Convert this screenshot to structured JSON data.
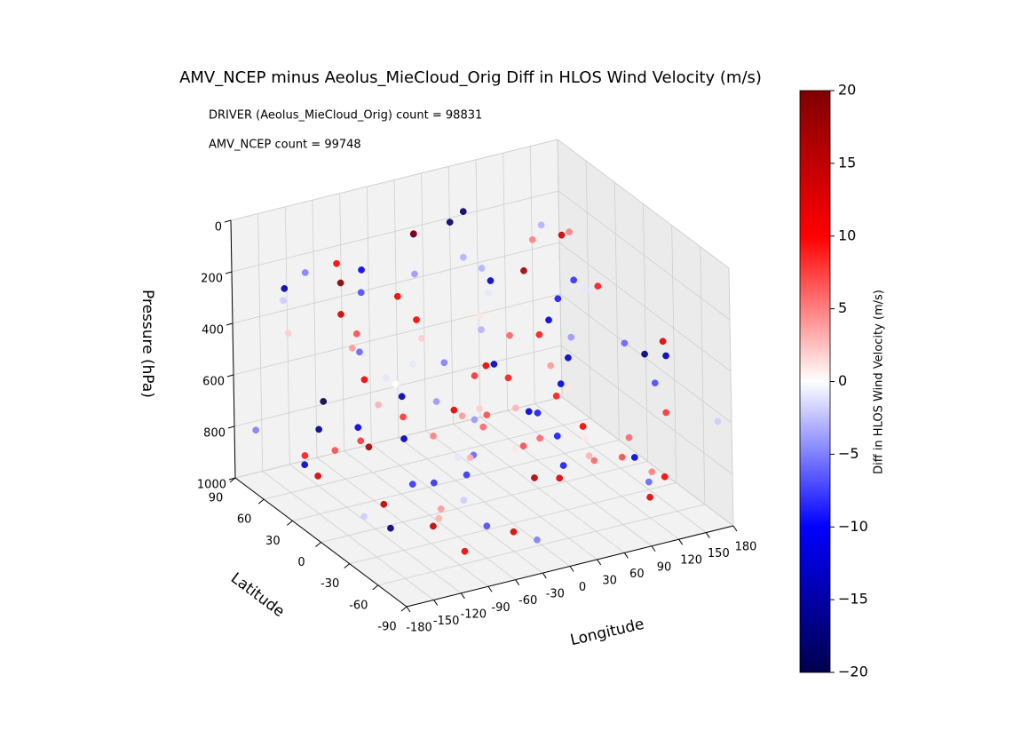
{
  "chart_data": {
    "type": "scatter3d",
    "title": "AMV_NCEP minus Aeolus_MieCloud_Orig Diff in HLOS Wind Velocity (m/s)",
    "annotations": [
      "DRIVER (Aeolus_MieCloud_Orig) count = 98831",
      "AMV_NCEP count = 99748"
    ],
    "xlabel": "Longitude",
    "ylabel": "Latitude",
    "zlabel": "Pressure (hPa)",
    "xlim": [
      -180,
      180
    ],
    "ylim": [
      -90,
      90
    ],
    "zlim": [
      0,
      1000
    ],
    "z_inverted": true,
    "xticks": [
      -180,
      -150,
      -120,
      -90,
      -60,
      -30,
      0,
      30,
      60,
      90,
      120,
      150,
      180
    ],
    "yticks": [
      -90,
      -60,
      -30,
      0,
      30,
      60,
      90
    ],
    "zticks": [
      0,
      200,
      400,
      600,
      800,
      1000
    ],
    "grid": true,
    "colorbar": {
      "label": "Diff in HLOS Wind Velocity (m/s)",
      "colormap": "seismic",
      "lim": [
        -20,
        20
      ],
      "ticks": [
        {
          "value": -20,
          "label": "−20"
        },
        {
          "value": -15,
          "label": "−15"
        },
        {
          "value": -10,
          "label": "−10"
        },
        {
          "value": -5,
          "label": "−5"
        },
        0,
        5,
        10,
        15,
        20
      ]
    },
    "series": [
      {
        "x": [
          -170,
          -150,
          -135,
          -120,
          -100,
          -85,
          -70,
          -55,
          -40,
          -25,
          -10,
          5,
          20,
          35,
          50,
          65,
          80,
          95,
          110,
          125,
          140,
          155,
          170,
          -165,
          -140,
          -115,
          -95,
          -75,
          -50,
          -30,
          -5,
          15,
          40,
          60,
          85,
          105,
          130,
          150,
          175,
          -160,
          -128,
          -105,
          -80,
          -60,
          -35,
          -15,
          10,
          30,
          55,
          75,
          100,
          120,
          145,
          165,
          -175,
          -145,
          -110,
          -90,
          -65,
          -45,
          -20,
          0,
          25,
          45,
          70,
          90,
          115,
          135,
          160,
          -155,
          -125,
          -98,
          -72,
          -48,
          -22,
          2,
          28,
          52,
          78,
          102,
          128,
          152,
          172,
          -168,
          -138,
          -112,
          -88,
          -62,
          -38,
          -12,
          12,
          38,
          62,
          88,
          112,
          138,
          162,
          -158,
          -132,
          -102,
          -78,
          -52,
          -28,
          -2,
          22,
          48,
          72,
          98,
          122,
          148,
          168,
          -172,
          -142,
          -118,
          -92,
          -68,
          -42,
          -18,
          8,
          32
        ],
        "y": [
          -80,
          45,
          -20,
          70,
          10,
          -55,
          85,
          -35,
          25,
          60,
          -70,
          5,
          50,
          -45,
          80,
          -10,
          35,
          -60,
          15,
          75,
          -25,
          55,
          -85,
          30,
          -50,
          65,
          0,
          -75,
          40,
          20,
          -40,
          85,
          -15,
          50,
          -65,
          10,
          70,
          -30,
          45,
          -55,
          25,
          -80,
          60,
          -5,
          35,
          -70,
          80,
          -20,
          55,
          -45,
          15,
          -60,
          75,
          -35,
          5,
          65,
          -85,
          40,
          -10,
          30,
          -50,
          70,
          20,
          -40,
          85,
          -25,
          50,
          -65,
          0,
          60,
          -75,
          35,
          -15,
          80,
          -55,
          10,
          45,
          -30,
          65,
          -80,
          25,
          -45,
          55,
          -5,
          75,
          -60,
          40,
          -20,
          85,
          -70,
          15,
          -35,
          60,
          -10,
          30,
          -50,
          70,
          -25,
          5,
          50,
          -65,
          80,
          -40,
          20,
          -85,
          45,
          -15,
          65,
          -55,
          35,
          -30,
          75,
          -5,
          55,
          -75,
          10,
          -45,
          85,
          -20,
          40
        ],
        "z": [
          300,
          850,
          450,
          200,
          950,
          600,
          250,
          750,
          400,
          900,
          550,
          350,
          800,
          650,
          180,
          500,
          950,
          300,
          700,
          420,
          880,
          240,
          600,
          760,
          330,
          980,
          460,
          820,
          270,
          640,
          520,
          210,
          900,
          380,
          720,
          560,
          290,
          970,
          440,
          810,
          230,
          680,
          500,
          860,
          360,
          940,
          190,
          620,
          480,
          780,
          340,
          920,
          260,
          700,
          580,
          400,
          860,
          220,
          660,
          510,
          960,
          310,
          740,
          470,
          170,
          830,
          590,
          370,
          890,
          250,
          710,
          430,
          990,
          280,
          620,
          540,
          200,
          870,
          390,
          750,
          320,
          910,
          480,
          640,
          260,
          800,
          560,
          350,
          990,
          450,
          690,
          230,
          930,
          410,
          770,
          520,
          300,
          850,
          610,
          200,
          570,
          940,
          330,
          720,
          490,
          260,
          880,
          620,
          380,
          980,
          440,
          780,
          210,
          660,
          540,
          900,
          310,
          740,
          470,
          820
        ],
        "values": [
          8,
          -12,
          3,
          -5,
          15,
          -1,
          10,
          -8,
          2,
          -14,
          6,
          -3,
          12,
          -9,
          -18,
          4,
          7,
          -6,
          1,
          18,
          -11,
          5,
          -2,
          9,
          -15,
          13,
          0,
          -7,
          11,
          -4,
          3,
          -10,
          16,
          -1,
          7,
          -13,
          5,
          -6,
          9,
          -17,
          14,
          -2,
          4,
          -8,
          10,
          -5,
          19,
          -12,
          1,
          6,
          -9,
          12,
          -3,
          8,
          -16,
          2,
          11,
          -7,
          5,
          -1,
          13,
          -4,
          7,
          -11,
          -19,
          3,
          9,
          -14,
          6,
          -2,
          4,
          -6,
          15,
          -10,
          1,
          8,
          -3,
          12,
          -13,
          5,
          -8,
          10,
          -1,
          7,
          -15,
          3,
          11,
          -5,
          17,
          -9,
          2,
          -12,
          6,
          -4,
          9,
          -7,
          14,
          -2,
          -11,
          20,
          -6,
          8,
          -13,
          4,
          10,
          -3,
          -9,
          6,
          -17,
          1,
          12,
          -5,
          7,
          -20,
          3,
          -8,
          11,
          -1,
          9,
          -4
        ]
      }
    ]
  }
}
